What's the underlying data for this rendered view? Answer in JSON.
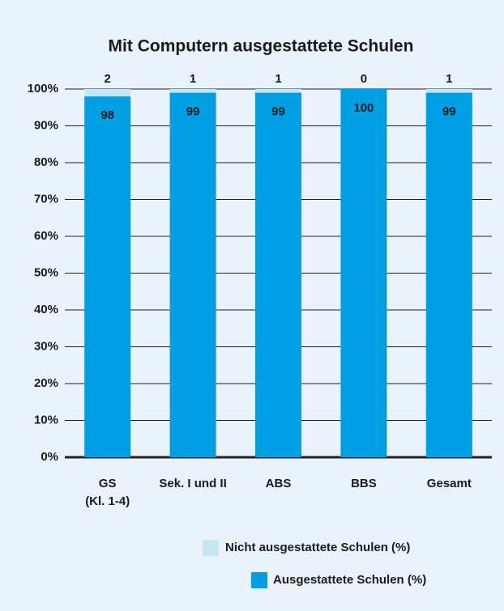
{
  "chart_data": {
    "type": "stacked_bar",
    "title": "Mit Computern ausgestattete Schulen",
    "categories": [
      "GS\n(Kl. 1-4)",
      "Sek. I und II",
      "ABS",
      "BBS",
      "Gesamt"
    ],
    "series": [
      {
        "name": "Ausgestattete Schulen (%)",
        "color": "#009fe3",
        "values": [
          98,
          99,
          99,
          100,
          99
        ]
      },
      {
        "name": "Nicht ausgestattete Schulen (%)",
        "color": "#c5e6f7",
        "values": [
          2,
          1,
          1,
          0,
          1
        ]
      }
    ],
    "ylim": [
      0,
      100
    ],
    "yticks": [
      {
        "value": 0,
        "label": "0%"
      },
      {
        "value": 10,
        "label": "10%"
      },
      {
        "value": 20,
        "label": "20%"
      },
      {
        "value": 30,
        "label": "30%"
      },
      {
        "value": 40,
        "label": "40%"
      },
      {
        "value": 50,
        "label": "50%"
      },
      {
        "value": 60,
        "label": "60%"
      },
      {
        "value": 70,
        "label": "70%"
      },
      {
        "value": 80,
        "label": "80%"
      },
      {
        "value": 90,
        "label": "90%"
      },
      {
        "value": 100,
        "label": "100%"
      }
    ],
    "grid": true,
    "legend": "bottom-right"
  }
}
